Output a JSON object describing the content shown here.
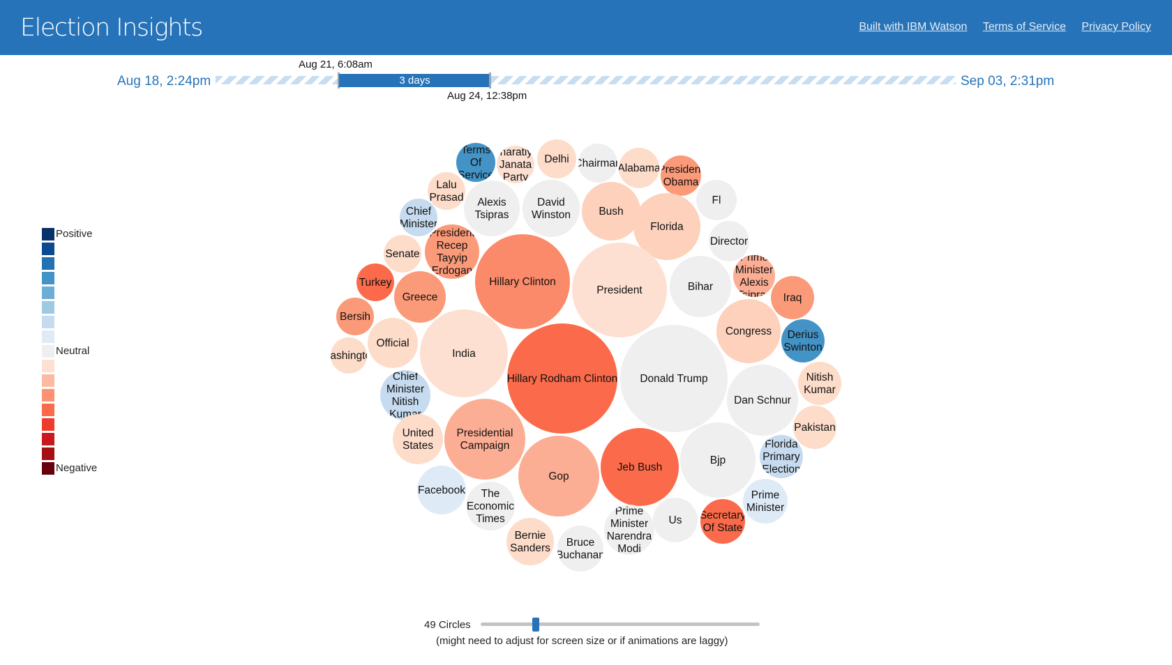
{
  "header": {
    "title": "Election Insights",
    "links": [
      "Built with IBM Watson",
      "Terms of Service",
      "Privacy Policy"
    ]
  },
  "timeline": {
    "start_label": "Aug 18, 2:24pm",
    "end_label": "Sep 03, 2:31pm",
    "selection_label": "3 days",
    "selection_start": "Aug 21, 6:08am",
    "selection_end": "Aug 24, 12:38pm"
  },
  "legend": {
    "positive_label": "Positive",
    "neutral_label": "Neutral",
    "negative_label": "Negative",
    "colors": [
      "#08306b",
      "#0b4a90",
      "#2371b5",
      "#4393c6",
      "#6caed6",
      "#9ecae1",
      "#c6dbef",
      "#deebf7",
      "#efefef",
      "#fee0d2",
      "#fcbba1",
      "#fc9272",
      "#fb6a4a",
      "#ef3b2c",
      "#cb181d",
      "#a50f15",
      "#67000d"
    ]
  },
  "bubbles": [
    {
      "lines": [
        "Terms",
        "Of",
        "Service"
      ],
      "color": "#4393c6"
    },
    {
      "lines": [
        "Bharatiya",
        "Janata",
        "Party"
      ],
      "color": "#fcdfd0"
    },
    {
      "lines": [
        "Delhi"
      ],
      "color": "#fddcca"
    },
    {
      "lines": [
        "Chairman"
      ],
      "color": "#efefef"
    },
    {
      "lines": [
        "Alabama"
      ],
      "color": "#fddcca"
    },
    {
      "lines": [
        "President",
        "Obama"
      ],
      "color": "#fb9a78"
    },
    {
      "lines": [
        "Lalu",
        "Prasad"
      ],
      "color": "#fddcca"
    },
    {
      "lines": [
        "Alexis",
        "Tsipras"
      ],
      "color": "#efefef"
    },
    {
      "lines": [
        "David",
        "Winston"
      ],
      "color": "#efefef"
    },
    {
      "lines": [
        "Bush"
      ],
      "color": "#fdd1bc"
    },
    {
      "lines": [
        "Florida"
      ],
      "color": "#fdd1bc"
    },
    {
      "lines": [
        "Fl"
      ],
      "color": "#efefef"
    },
    {
      "lines": [
        "Chief",
        "Minister"
      ],
      "color": "#c6dbef"
    },
    {
      "lines": [
        "Director"
      ],
      "color": "#efefef"
    },
    {
      "lines": [
        "President",
        "Recep",
        "Tayyip",
        "Erdogan"
      ],
      "color": "#fb9a78"
    },
    {
      "lines": [
        "Senate"
      ],
      "color": "#fddcca"
    },
    {
      "lines": [
        "Hillary Clinton"
      ],
      "color": "#fb8a6a"
    },
    {
      "lines": [
        "President"
      ],
      "color": "#fee0d2"
    },
    {
      "lines": [
        "Bihar"
      ],
      "color": "#efefef"
    },
    {
      "lines": [
        "Prime",
        "Minister",
        "Alexis",
        "Tsipras"
      ],
      "color": "#fcae94"
    },
    {
      "lines": [
        "Turkey"
      ],
      "color": "#fb6a4a"
    },
    {
      "lines": [
        "Greece"
      ],
      "color": "#fb9a78"
    },
    {
      "lines": [
        "Iraq"
      ],
      "color": "#fb9a78"
    },
    {
      "lines": [
        "Bersih"
      ],
      "color": "#fb9a78"
    },
    {
      "lines": [
        "Congress"
      ],
      "color": "#fdd1bc"
    },
    {
      "lines": [
        "Derius",
        "Swinton"
      ],
      "color": "#4393c6"
    },
    {
      "lines": [
        "Official"
      ],
      "color": "#fddcca"
    },
    {
      "lines": [
        "India"
      ],
      "color": "#fee0d2"
    },
    {
      "lines": [
        "Hillary Rodham Clinton"
      ],
      "color": "#fb6a4a"
    },
    {
      "lines": [
        "Donald Trump"
      ],
      "color": "#efefef"
    },
    {
      "lines": [
        "Washington"
      ],
      "color": "#fddcca"
    },
    {
      "lines": [
        "Nitish",
        "Kumar"
      ],
      "color": "#fddcca"
    },
    {
      "lines": [
        "Chief",
        "Minister",
        "Nitish",
        "Kumar"
      ],
      "color": "#c6dbef"
    },
    {
      "lines": [
        "Dan Schnur"
      ],
      "color": "#efefef"
    },
    {
      "lines": [
        "Pakistan"
      ],
      "color": "#fddcca"
    },
    {
      "lines": [
        "United",
        "States"
      ],
      "color": "#fddcca"
    },
    {
      "lines": [
        "Presidential",
        "Campaign"
      ],
      "color": "#fcae94"
    },
    {
      "lines": [
        "Jeb Bush"
      ],
      "color": "#fb6a4a"
    },
    {
      "lines": [
        "Bjp"
      ],
      "color": "#efefef"
    },
    {
      "lines": [
        "Florida",
        "Primary",
        "Election"
      ],
      "color": "#c6dbef"
    },
    {
      "lines": [
        "Gop"
      ],
      "color": "#fcae94"
    },
    {
      "lines": [
        "Facebook"
      ],
      "color": "#deebf7"
    },
    {
      "lines": [
        "The",
        "Economic",
        "Times"
      ],
      "color": "#efefef"
    },
    {
      "lines": [
        "Prime",
        "Minister"
      ],
      "color": "#deebf7"
    },
    {
      "lines": [
        "Prime",
        "Minister",
        "Narendra",
        "Modi"
      ],
      "color": "#efefef"
    },
    {
      "lines": [
        "Us"
      ],
      "color": "#efefef"
    },
    {
      "lines": [
        "Secretary",
        "Of State"
      ],
      "color": "#fb6a4a"
    },
    {
      "lines": [
        "Bernie",
        "Sanders"
      ],
      "color": "#fddcca"
    },
    {
      "lines": [
        "Bruce",
        "Buchanan"
      ],
      "color": "#efefef"
    }
  ],
  "slider": {
    "label": "49 Circles",
    "note": "(might need to adjust for screen size or if animations are laggy)",
    "value": 49
  }
}
